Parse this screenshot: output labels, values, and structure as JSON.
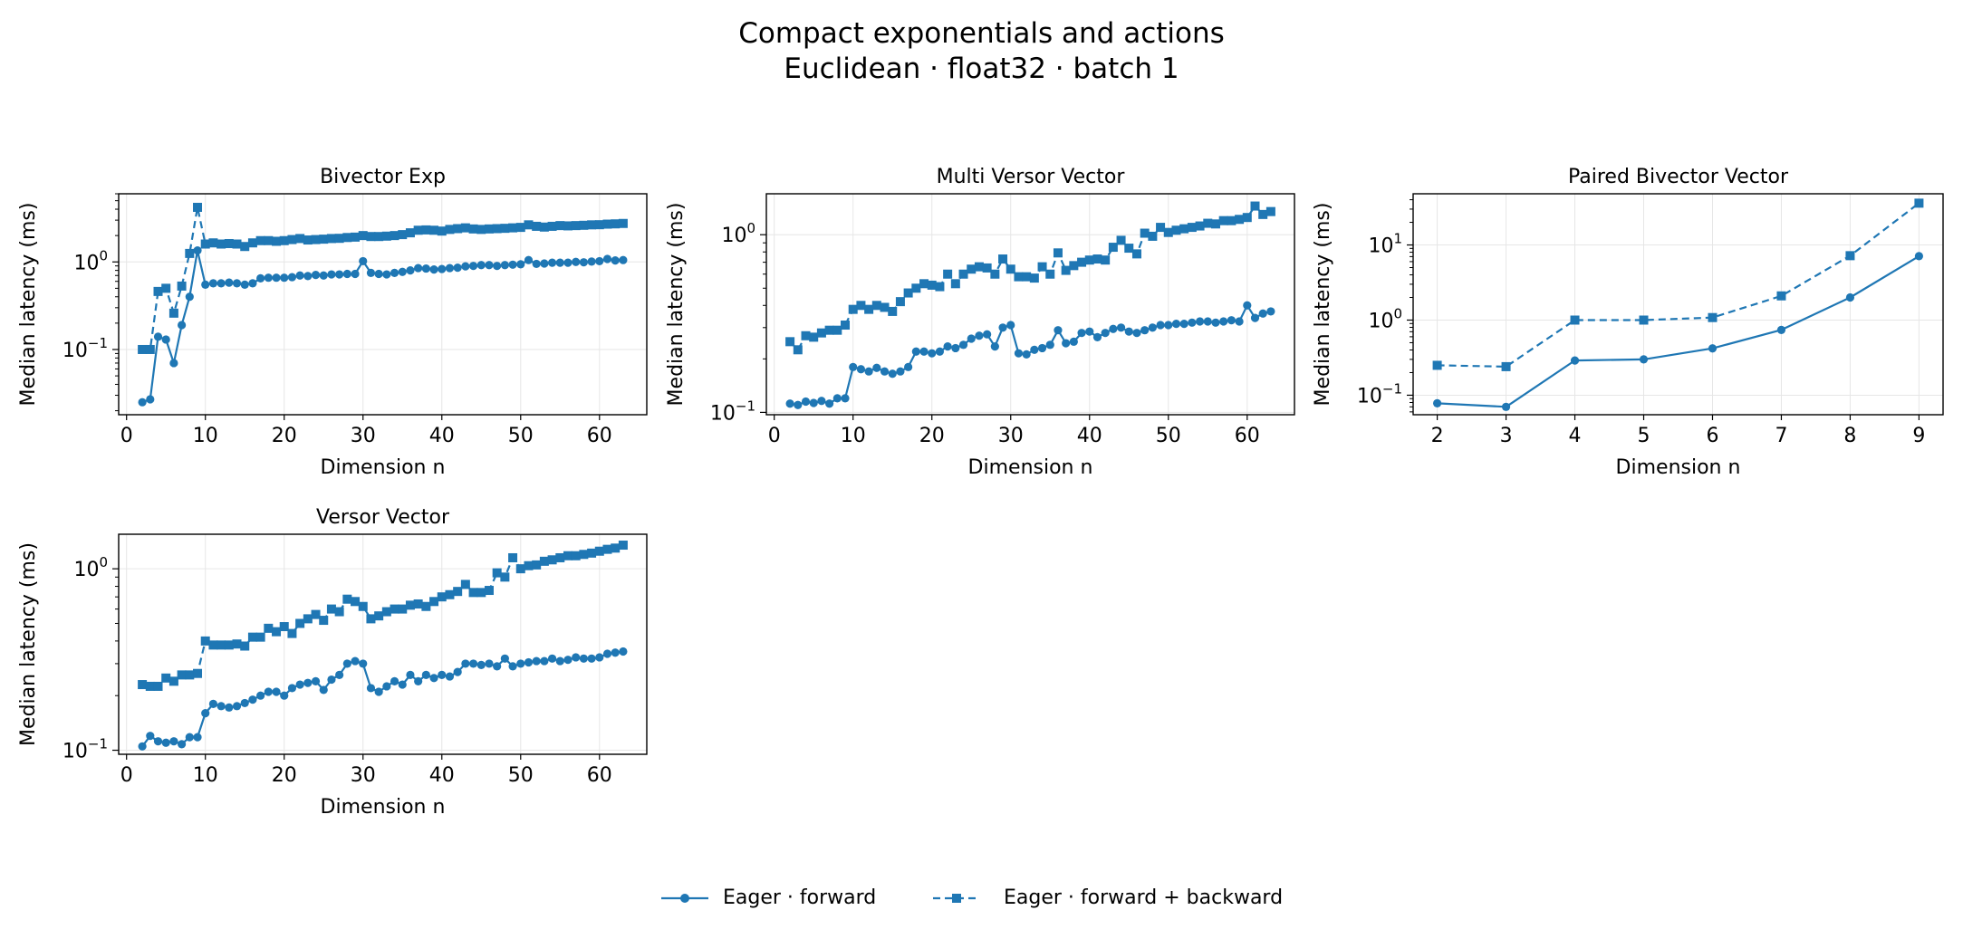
{
  "title_line1": "Compact exponentials and actions",
  "title_line2": "Euclidean · float32 · batch 1",
  "colors": {
    "series": "#1f77b4",
    "grid": "#e6e6e6"
  },
  "legend": {
    "forward": "Eager · forward",
    "backward": "Eager · forward + backward"
  },
  "chart_data": [
    {
      "type": "line",
      "title": "Bivector Exp",
      "xlabel": "Dimension n",
      "ylabel": "Median latency (ms)",
      "yscale": "log",
      "xlim": [
        -1,
        66
      ],
      "ylim": [
        0.018,
        6
      ],
      "xticks": [
        0,
        10,
        20,
        30,
        40,
        50,
        60
      ],
      "yticks": [
        0.1,
        1
      ],
      "yticklabels": [
        [
          "10",
          "−1"
        ],
        [
          "10",
          "0"
        ]
      ],
      "grid": true,
      "x": [
        2,
        3,
        4,
        5,
        6,
        7,
        8,
        9,
        10,
        11,
        12,
        13,
        14,
        15,
        16,
        17,
        18,
        19,
        20,
        21,
        22,
        23,
        24,
        25,
        26,
        27,
        28,
        29,
        30,
        31,
        32,
        33,
        34,
        35,
        36,
        37,
        38,
        39,
        40,
        41,
        42,
        43,
        44,
        45,
        46,
        47,
        48,
        49,
        50,
        51,
        52,
        53,
        54,
        55,
        56,
        57,
        58,
        59,
        60,
        61,
        62,
        63
      ],
      "series": [
        {
          "name": "Eager · forward",
          "style": "solid",
          "marker": "circle",
          "values": [
            0.025,
            0.027,
            0.14,
            0.13,
            0.07,
            0.19,
            0.4,
            1.35,
            0.55,
            0.57,
            0.57,
            0.58,
            0.57,
            0.55,
            0.57,
            0.65,
            0.66,
            0.66,
            0.66,
            0.67,
            0.7,
            0.69,
            0.71,
            0.7,
            0.72,
            0.72,
            0.73,
            0.73,
            1.02,
            0.75,
            0.73,
            0.72,
            0.75,
            0.77,
            0.8,
            0.85,
            0.84,
            0.82,
            0.83,
            0.85,
            0.86,
            0.89,
            0.9,
            0.92,
            0.92,
            0.9,
            0.92,
            0.93,
            0.94,
            1.05,
            0.95,
            0.96,
            0.98,
            0.98,
            0.98,
            1.0,
            0.99,
            1.01,
            1.02,
            1.08,
            1.04,
            1.05
          ]
        },
        {
          "name": "Eager · forward + backward",
          "style": "dashed",
          "marker": "square",
          "values": [
            0.1,
            0.1,
            0.46,
            0.5,
            0.26,
            0.53,
            1.25,
            4.2,
            1.6,
            1.65,
            1.6,
            1.62,
            1.6,
            1.5,
            1.65,
            1.75,
            1.75,
            1.72,
            1.75,
            1.8,
            1.85,
            1.78,
            1.8,
            1.82,
            1.85,
            1.86,
            1.9,
            1.92,
            2.0,
            1.95,
            1.95,
            1.97,
            2.0,
            2.05,
            2.15,
            2.3,
            2.32,
            2.3,
            2.25,
            2.35,
            2.4,
            2.45,
            2.38,
            2.35,
            2.38,
            2.4,
            2.42,
            2.45,
            2.48,
            2.65,
            2.55,
            2.5,
            2.55,
            2.6,
            2.58,
            2.6,
            2.62,
            2.65,
            2.66,
            2.7,
            2.72,
            2.75
          ]
        }
      ]
    },
    {
      "type": "line",
      "title": "Multi Versor Vector",
      "xlabel": "Dimension n",
      "ylabel": "Median latency (ms)",
      "yscale": "log",
      "xlim": [
        -1,
        66
      ],
      "ylim": [
        0.097,
        1.7
      ],
      "xticks": [
        0,
        10,
        20,
        30,
        40,
        50,
        60
      ],
      "yticks": [
        0.1,
        1
      ],
      "yticklabels": [
        [
          "10",
          "−1"
        ],
        [
          "10",
          "0"
        ]
      ],
      "grid": true,
      "x": [
        2,
        3,
        4,
        5,
        6,
        7,
        8,
        9,
        10,
        11,
        12,
        13,
        14,
        15,
        16,
        17,
        18,
        19,
        20,
        21,
        22,
        23,
        24,
        25,
        26,
        27,
        28,
        29,
        30,
        31,
        32,
        33,
        34,
        35,
        36,
        37,
        38,
        39,
        40,
        41,
        42,
        43,
        44,
        45,
        46,
        47,
        48,
        49,
        50,
        51,
        52,
        53,
        54,
        55,
        56,
        57,
        58,
        59,
        60,
        61,
        62,
        63
      ],
      "series": [
        {
          "name": "Eager · forward",
          "style": "solid",
          "marker": "circle",
          "values": [
            0.112,
            0.11,
            0.115,
            0.113,
            0.116,
            0.112,
            0.12,
            0.12,
            0.18,
            0.175,
            0.17,
            0.178,
            0.17,
            0.165,
            0.17,
            0.18,
            0.22,
            0.22,
            0.215,
            0.22,
            0.235,
            0.23,
            0.24,
            0.26,
            0.27,
            0.275,
            0.235,
            0.3,
            0.31,
            0.215,
            0.212,
            0.225,
            0.23,
            0.24,
            0.29,
            0.245,
            0.25,
            0.28,
            0.285,
            0.265,
            0.28,
            0.295,
            0.3,
            0.285,
            0.28,
            0.29,
            0.3,
            0.31,
            0.31,
            0.315,
            0.315,
            0.32,
            0.325,
            0.325,
            0.32,
            0.325,
            0.33,
            0.325,
            0.4,
            0.34,
            0.36,
            0.37
          ]
        },
        {
          "name": "Eager · forward + backward",
          "style": "dashed",
          "marker": "square",
          "values": [
            0.25,
            0.225,
            0.27,
            0.265,
            0.28,
            0.29,
            0.29,
            0.31,
            0.38,
            0.4,
            0.38,
            0.4,
            0.39,
            0.37,
            0.42,
            0.47,
            0.5,
            0.53,
            0.52,
            0.51,
            0.6,
            0.53,
            0.6,
            0.64,
            0.66,
            0.65,
            0.6,
            0.73,
            0.64,
            0.58,
            0.58,
            0.57,
            0.66,
            0.6,
            0.79,
            0.63,
            0.67,
            0.7,
            0.72,
            0.73,
            0.72,
            0.85,
            0.93,
            0.84,
            0.78,
            1.02,
            0.98,
            1.1,
            1.03,
            1.06,
            1.08,
            1.1,
            1.12,
            1.16,
            1.15,
            1.2,
            1.2,
            1.22,
            1.25,
            1.45,
            1.3,
            1.35
          ]
        }
      ]
    },
    {
      "type": "line",
      "title": "Paired Bivector Vector",
      "xlabel": "Dimension n",
      "ylabel": "Median latency (ms)",
      "yscale": "log",
      "xlim": [
        1.65,
        9.35
      ],
      "ylim": [
        0.055,
        48
      ],
      "xticks": [
        2,
        3,
        4,
        5,
        6,
        7,
        8,
        9
      ],
      "yticks": [
        0.1,
        1,
        10
      ],
      "yticklabels": [
        [
          "10",
          "−1"
        ],
        [
          "10",
          "0"
        ],
        [
          "10",
          "1"
        ]
      ],
      "grid": true,
      "x": [
        2,
        3,
        4,
        5,
        6,
        7,
        8,
        9
      ],
      "series": [
        {
          "name": "Eager · forward",
          "style": "solid",
          "marker": "circle",
          "values": [
            0.078,
            0.07,
            0.29,
            0.3,
            0.42,
            0.74,
            2.0,
            7.1
          ]
        },
        {
          "name": "Eager · forward + backward",
          "style": "dashed",
          "marker": "square",
          "values": [
            0.25,
            0.24,
            1.0,
            1.0,
            1.08,
            2.1,
            7.2,
            36
          ]
        }
      ]
    },
    {
      "type": "line",
      "title": "Versor Vector",
      "xlabel": "Dimension n",
      "ylabel": "Median latency (ms)",
      "yscale": "log",
      "xlim": [
        -1,
        66
      ],
      "ylim": [
        0.095,
        1.55
      ],
      "xticks": [
        0,
        10,
        20,
        30,
        40,
        50,
        60
      ],
      "yticks": [
        0.1,
        1
      ],
      "yticklabels": [
        [
          "10",
          "−1"
        ],
        [
          "10",
          "0"
        ]
      ],
      "grid": true,
      "x": [
        2,
        3,
        4,
        5,
        6,
        7,
        8,
        9,
        10,
        11,
        12,
        13,
        14,
        15,
        16,
        17,
        18,
        19,
        20,
        21,
        22,
        23,
        24,
        25,
        26,
        27,
        28,
        29,
        30,
        31,
        32,
        33,
        34,
        35,
        36,
        37,
        38,
        39,
        40,
        41,
        42,
        43,
        44,
        45,
        46,
        47,
        48,
        49,
        50,
        51,
        52,
        53,
        54,
        55,
        56,
        57,
        58,
        59,
        60,
        61,
        62,
        63
      ],
      "series": [
        {
          "name": "Eager · forward",
          "style": "solid",
          "marker": "circle",
          "values": [
            0.105,
            0.12,
            0.112,
            0.11,
            0.112,
            0.108,
            0.118,
            0.118,
            0.16,
            0.18,
            0.175,
            0.172,
            0.175,
            0.182,
            0.19,
            0.2,
            0.21,
            0.21,
            0.2,
            0.22,
            0.23,
            0.235,
            0.24,
            0.215,
            0.245,
            0.26,
            0.3,
            0.31,
            0.3,
            0.22,
            0.21,
            0.225,
            0.24,
            0.23,
            0.26,
            0.24,
            0.26,
            0.25,
            0.26,
            0.255,
            0.27,
            0.3,
            0.3,
            0.295,
            0.3,
            0.29,
            0.32,
            0.29,
            0.3,
            0.305,
            0.31,
            0.31,
            0.32,
            0.31,
            0.315,
            0.325,
            0.32,
            0.32,
            0.325,
            0.34,
            0.345,
            0.35
          ]
        },
        {
          "name": "Eager · forward + backward",
          "style": "dashed",
          "marker": "square",
          "values": [
            0.23,
            0.225,
            0.225,
            0.25,
            0.24,
            0.26,
            0.26,
            0.265,
            0.4,
            0.38,
            0.38,
            0.38,
            0.385,
            0.375,
            0.42,
            0.42,
            0.47,
            0.45,
            0.48,
            0.44,
            0.5,
            0.53,
            0.56,
            0.52,
            0.6,
            0.58,
            0.68,
            0.66,
            0.62,
            0.53,
            0.55,
            0.58,
            0.6,
            0.6,
            0.63,
            0.64,
            0.62,
            0.66,
            0.7,
            0.72,
            0.75,
            0.82,
            0.74,
            0.74,
            0.76,
            0.95,
            0.9,
            1.15,
            1.0,
            1.04,
            1.05,
            1.1,
            1.12,
            1.15,
            1.18,
            1.18,
            1.2,
            1.22,
            1.25,
            1.28,
            1.3,
            1.35
          ]
        }
      ]
    }
  ]
}
